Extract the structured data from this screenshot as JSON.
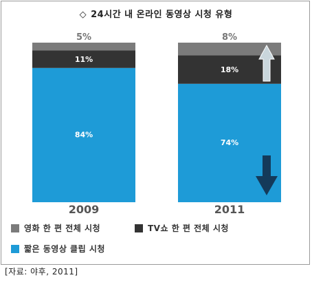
{
  "chart_data": {
    "type": "bar",
    "stacked": true,
    "title": "24시간 내 온라인 동영상 시청 유형",
    "categories": [
      "2009",
      "2011"
    ],
    "series": [
      {
        "name": "짧은 동영상 클립 시청",
        "values": [
          84,
          74
        ],
        "labels": [
          "84%",
          "74%"
        ],
        "color": "#1e9bd7"
      },
      {
        "name": "TV쇼 한 편 전체 시청",
        "values": [
          11,
          18
        ],
        "labels": [
          "11%",
          "18%"
        ],
        "color": "#333333"
      },
      {
        "name": "영화 한 편 전체 시청",
        "values": [
          5,
          8
        ],
        "labels": [
          "5%",
          "8%"
        ],
        "color": "#7b7b7b"
      }
    ],
    "ylim": [
      0,
      100
    ],
    "grid": false,
    "legend_position": "bottom"
  },
  "title_mark": "◇",
  "legend": {
    "movie": "영화 한 편 전체 시청",
    "tv": "TV쇼 한 편 전체 시청",
    "clip": "짧은 동영상 클립 시청"
  },
  "source": "[자료: 야후, 2011]"
}
